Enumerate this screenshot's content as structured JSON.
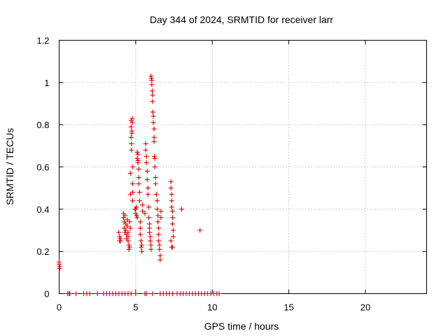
{
  "chart_data": {
    "type": "scatter",
    "title": "Day 344 of 2024, SRMTID for receiver larr",
    "xlabel": "GPS time / hours",
    "ylabel": "SRMTID / TECUs",
    "xlim": [
      0,
      24
    ],
    "ylim": [
      0,
      1.2
    ],
    "xticks": [
      0,
      5,
      10,
      15,
      20
    ],
    "yticks": [
      0,
      0.2,
      0.4,
      0.6,
      0.8,
      1,
      1.2
    ],
    "xtick_labels": [
      "0",
      "5",
      "10",
      "15",
      "20"
    ],
    "ytick_labels": [
      "0",
      "0.2",
      "0.4",
      "0.6",
      "0.8",
      "1",
      "1.2"
    ],
    "grid": true,
    "color": "#e00000",
    "marker": "plus",
    "series": [
      {
        "name": "SRMTID",
        "points": [
          [
            0.0,
            0.15
          ],
          [
            0.0,
            0.14
          ],
          [
            0.03,
            0.13
          ],
          [
            0.03,
            0.12
          ],
          [
            3.9,
            0.29
          ],
          [
            3.95,
            0.27
          ],
          [
            3.95,
            0.25
          ],
          [
            4.0,
            0.26
          ],
          [
            4.0,
            0.25
          ],
          [
            4.2,
            0.38
          ],
          [
            4.2,
            0.36
          ],
          [
            4.25,
            0.34
          ],
          [
            4.25,
            0.31
          ],
          [
            4.3,
            0.37
          ],
          [
            4.3,
            0.29
          ],
          [
            4.35,
            0.33
          ],
          [
            4.35,
            0.3
          ],
          [
            4.4,
            0.28
          ],
          [
            4.4,
            0.26
          ],
          [
            4.45,
            0.35
          ],
          [
            4.45,
            0.32
          ],
          [
            4.5,
            0.29
          ],
          [
            4.5,
            0.27
          ],
          [
            4.5,
            0.25
          ],
          [
            4.55,
            0.23
          ],
          [
            4.55,
            0.21
          ],
          [
            4.6,
            0.22
          ],
          [
            4.6,
            0.34
          ],
          [
            4.65,
            0.31
          ],
          [
            4.65,
            0.47
          ],
          [
            4.65,
            0.57
          ],
          [
            4.7,
            0.82
          ],
          [
            4.7,
            0.79
          ],
          [
            4.7,
            0.74
          ],
          [
            4.72,
            0.71
          ],
          [
            4.72,
            0.68
          ],
          [
            4.75,
            0.76
          ],
          [
            4.75,
            0.77
          ],
          [
            4.78,
            0.83
          ],
          [
            4.78,
            0.81
          ],
          [
            4.8,
            0.6
          ],
          [
            4.8,
            0.52
          ],
          [
            4.8,
            0.48
          ],
          [
            4.8,
            0.44
          ],
          [
            4.95,
            0.4
          ],
          [
            5.0,
            0.4
          ],
          [
            5.0,
            0.38
          ],
          [
            5.05,
            0.37
          ],
          [
            5.05,
            0.41
          ],
          [
            5.1,
            0.36
          ],
          [
            5.1,
            0.64
          ],
          [
            5.1,
            0.67
          ],
          [
            5.15,
            0.66
          ],
          [
            5.15,
            0.63
          ],
          [
            5.15,
            0.62
          ],
          [
            5.2,
            0.59
          ],
          [
            5.2,
            0.55
          ],
          [
            5.2,
            0.52
          ],
          [
            5.25,
            0.48
          ],
          [
            5.25,
            0.44
          ],
          [
            5.3,
            0.34
          ],
          [
            5.3,
            0.31
          ],
          [
            5.3,
            0.28
          ],
          [
            5.35,
            0.25
          ],
          [
            5.35,
            0.22
          ],
          [
            5.4,
            0.2
          ],
          [
            5.4,
            0.23
          ],
          [
            5.45,
            0.39
          ],
          [
            5.45,
            0.42
          ],
          [
            5.6,
            0.38
          ],
          [
            5.65,
            0.71
          ],
          [
            5.65,
            0.68
          ],
          [
            5.7,
            0.65
          ],
          [
            5.7,
            0.62
          ],
          [
            5.75,
            0.58
          ],
          [
            5.75,
            0.54
          ],
          [
            5.8,
            0.5
          ],
          [
            5.8,
            0.47
          ],
          [
            5.85,
            0.41
          ],
          [
            5.85,
            0.36
          ],
          [
            5.9,
            0.33
          ],
          [
            5.9,
            0.31
          ],
          [
            5.9,
            0.29
          ],
          [
            5.95,
            0.27
          ],
          [
            5.95,
            0.25
          ],
          [
            6.0,
            0.23
          ],
          [
            6.0,
            0.21
          ],
          [
            6.0,
            1.03
          ],
          [
            6.02,
            1.02
          ],
          [
            6.05,
            1.01
          ],
          [
            6.05,
            0.99
          ],
          [
            6.08,
            0.96
          ],
          [
            6.1,
            0.94
          ],
          [
            6.1,
            0.91
          ],
          [
            6.12,
            0.86
          ],
          [
            6.15,
            0.84
          ],
          [
            6.15,
            0.81
          ],
          [
            6.2,
            0.78
          ],
          [
            6.2,
            0.74
          ],
          [
            6.2,
            0.72
          ],
          [
            6.22,
            0.65
          ],
          [
            6.25,
            0.64
          ],
          [
            6.25,
            0.6
          ],
          [
            6.3,
            0.55
          ],
          [
            6.3,
            0.52
          ],
          [
            6.35,
            0.47
          ],
          [
            6.4,
            0.44
          ],
          [
            6.4,
            0.4
          ],
          [
            6.45,
            0.37
          ],
          [
            6.45,
            0.34
          ],
          [
            6.5,
            0.31
          ],
          [
            6.5,
            0.28
          ],
          [
            6.5,
            0.25
          ],
          [
            6.55,
            0.23
          ],
          [
            6.55,
            0.21
          ],
          [
            6.6,
            0.18
          ],
          [
            6.6,
            0.16
          ],
          [
            6.65,
            0.39
          ],
          [
            6.65,
            0.36
          ],
          [
            7.3,
            0.53
          ],
          [
            7.3,
            0.5
          ],
          [
            7.35,
            0.47
          ],
          [
            7.35,
            0.44
          ],
          [
            7.35,
            0.41
          ],
          [
            7.4,
            0.39
          ],
          [
            7.4,
            0.36
          ],
          [
            7.4,
            0.33
          ],
          [
            7.45,
            0.3
          ],
          [
            7.45,
            0.27
          ],
          [
            7.3,
            0.25
          ],
          [
            7.35,
            0.22
          ],
          [
            7.4,
            0.22
          ],
          [
            8.0,
            0.4
          ],
          [
            9.2,
            0.3
          ],
          [
            0.55,
            0.0
          ],
          [
            0.65,
            0.0
          ],
          [
            0.7,
            0.0
          ],
          [
            1.1,
            0.0
          ],
          [
            1.6,
            0.0
          ],
          [
            1.8,
            0.0
          ],
          [
            2.0,
            0.0
          ],
          [
            2.5,
            0.0
          ],
          [
            2.9,
            0.0
          ],
          [
            3.1,
            0.0
          ],
          [
            3.3,
            0.0
          ],
          [
            3.5,
            0.0
          ],
          [
            3.7,
            0.0
          ],
          [
            3.9,
            0.0
          ],
          [
            4.1,
            0.0
          ],
          [
            4.3,
            0.0
          ],
          [
            4.5,
            0.0
          ],
          [
            4.7,
            0.0
          ],
          [
            5.0,
            0.0
          ],
          [
            5.6,
            0.0
          ],
          [
            5.7,
            0.0
          ],
          [
            6.1,
            0.0
          ],
          [
            6.6,
            0.0
          ],
          [
            6.8,
            0.0
          ],
          [
            7.0,
            0.0
          ],
          [
            7.2,
            0.0
          ],
          [
            7.4,
            0.0
          ],
          [
            7.7,
            0.0
          ],
          [
            7.9,
            0.0
          ],
          [
            8.1,
            0.0
          ],
          [
            8.3,
            0.0
          ],
          [
            8.5,
            0.0
          ],
          [
            8.7,
            0.0
          ],
          [
            8.9,
            0.0
          ],
          [
            9.1,
            0.0
          ],
          [
            9.3,
            0.0
          ],
          [
            9.5,
            0.0
          ],
          [
            9.7,
            0.0
          ],
          [
            9.9,
            0.0
          ],
          [
            10.1,
            0.0
          ],
          [
            10.3,
            0.0
          ],
          [
            10.45,
            0.0
          ]
        ]
      }
    ]
  }
}
